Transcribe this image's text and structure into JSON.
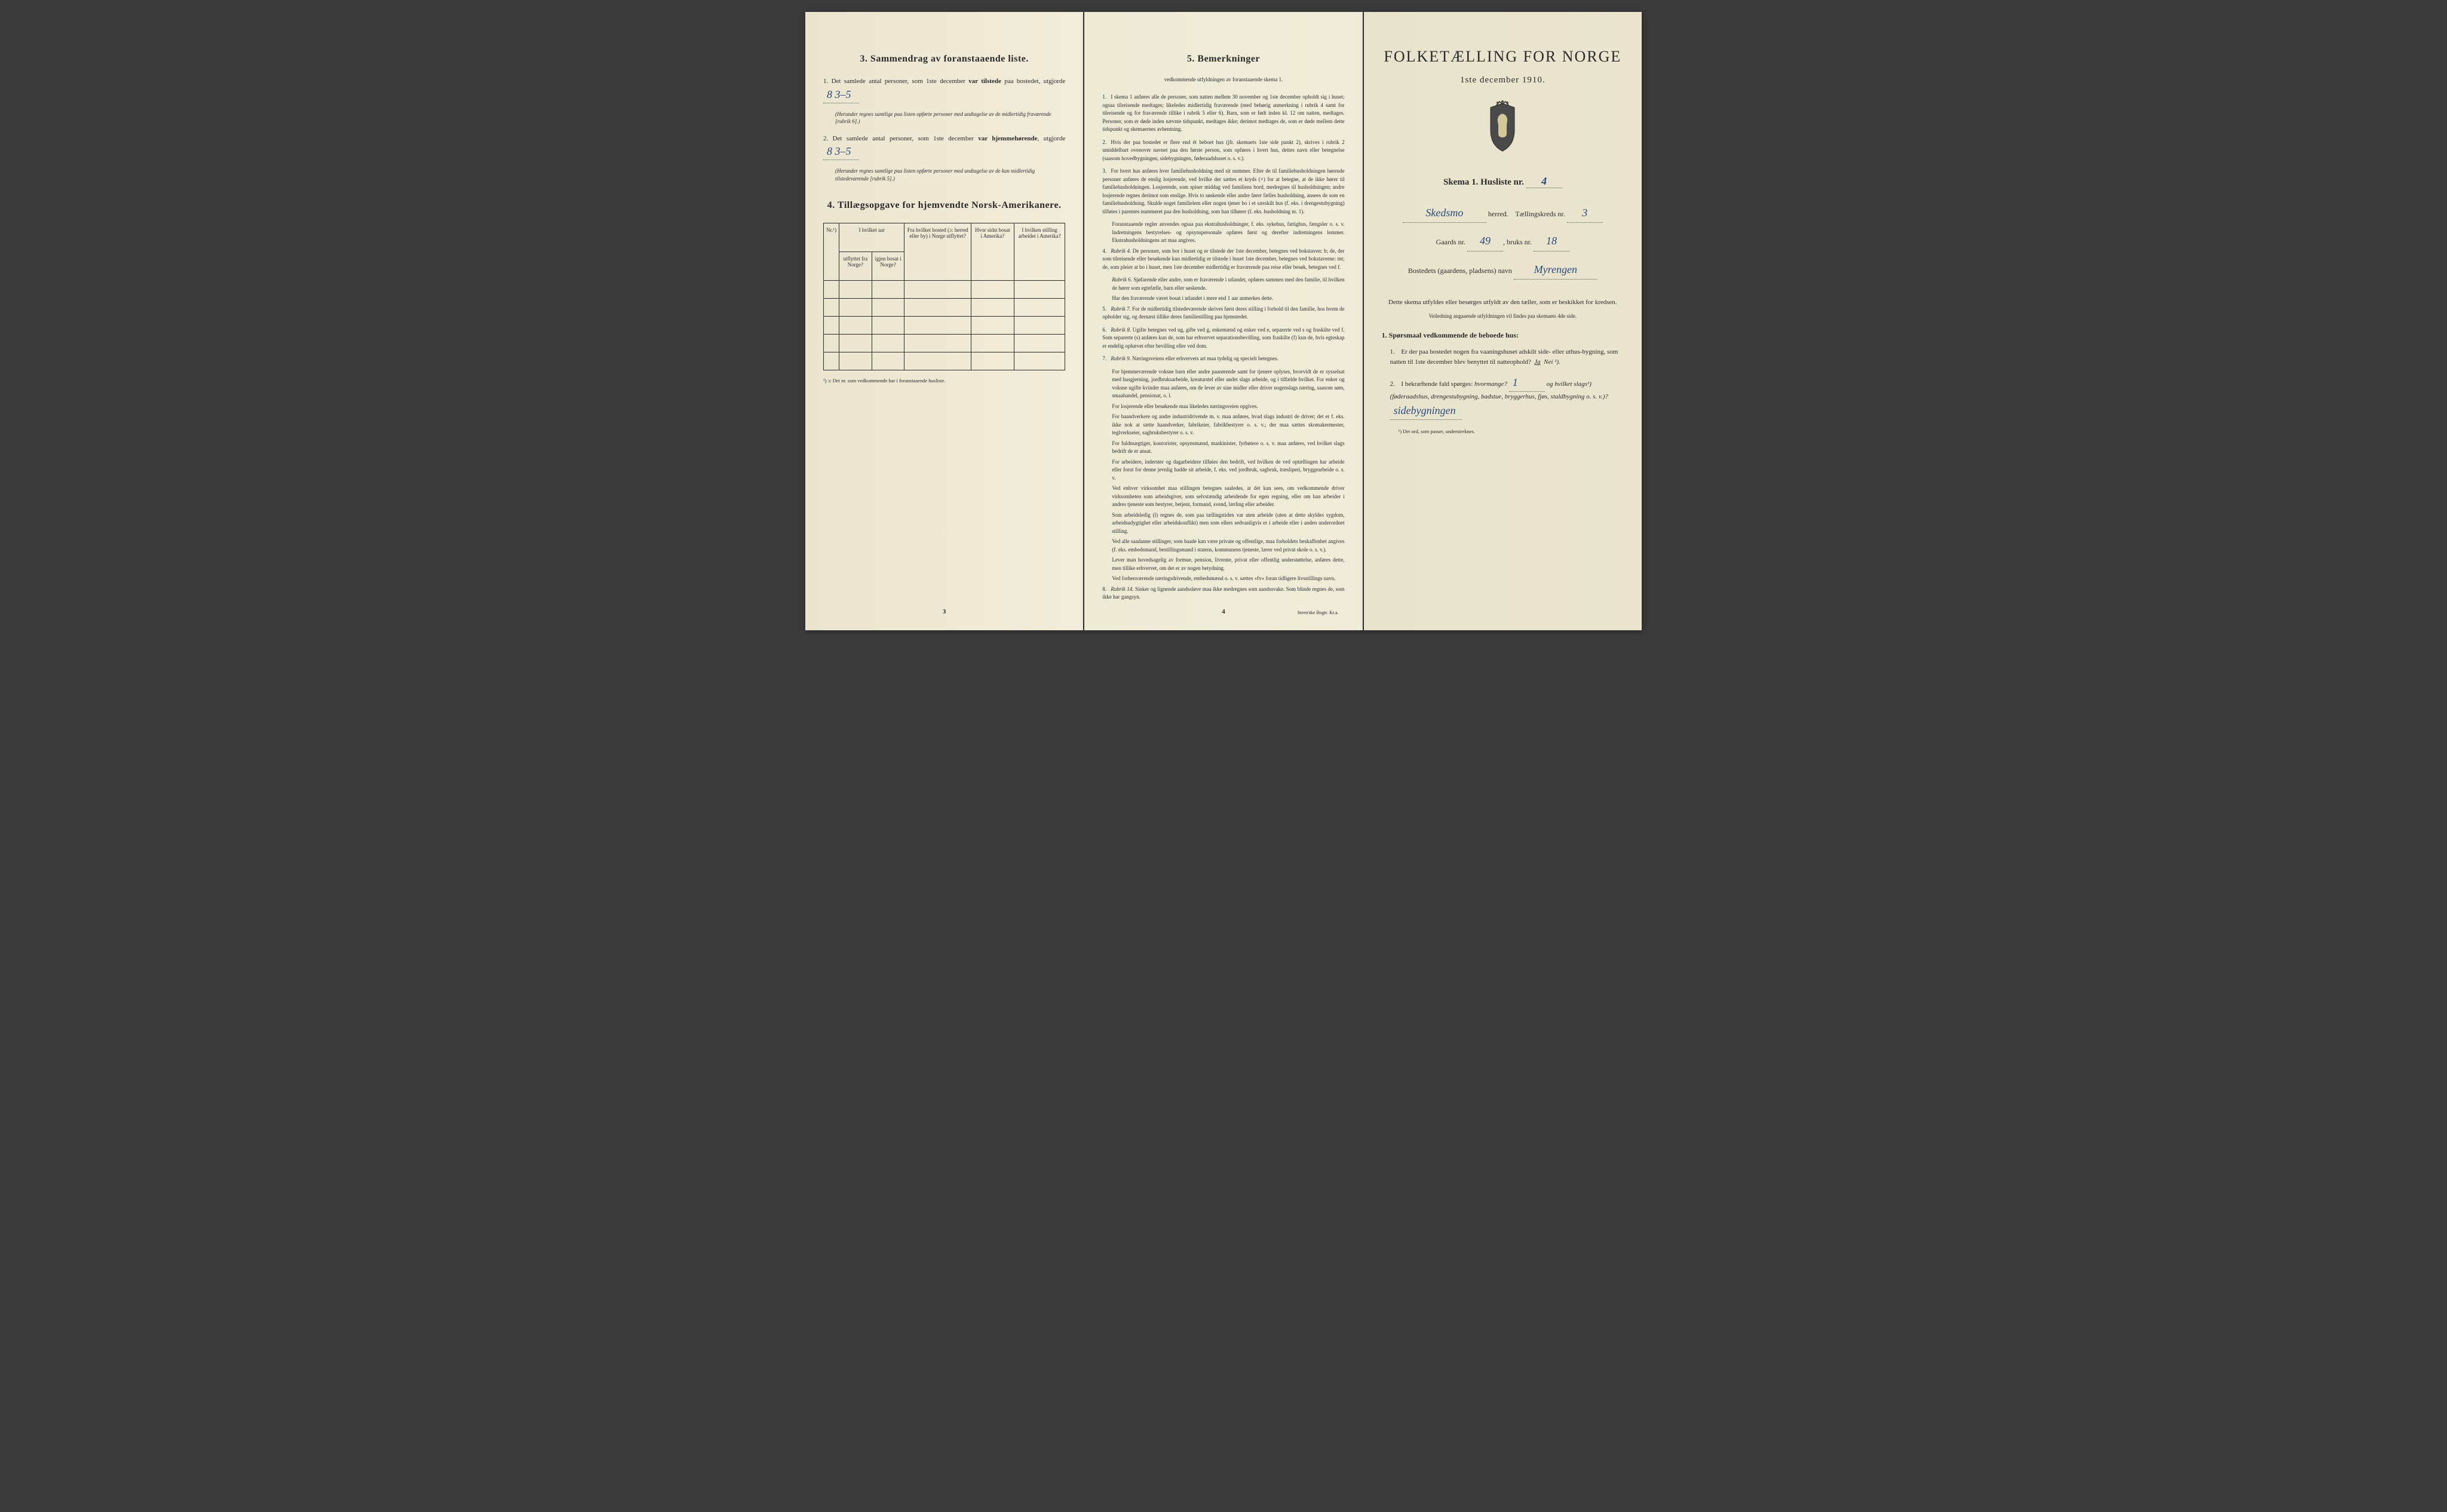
{
  "page_left": {
    "section3": {
      "title": "3.  Sammendrag av foranstaaende liste.",
      "item1_prefix": "1.  Det samlede antal personer, som 1ste december ",
      "item1_bold": "var tilstede",
      "item1_suffix": " paa bostedet, utgjorde",
      "item1_value": "8   3–5",
      "item1_note": "(Herunder regnes samtlige paa listen opførte personer med undtagelse av de midlertidig fraværende [rubrik 6].)",
      "item2_prefix": "2.  Det samlede antal personer, som 1ste december ",
      "item2_bold": "var hjemmehørende",
      "item2_suffix": ", utgjorde",
      "item2_value": "8   3–5",
      "item2_note": "(Herunder regnes samtlige paa listen opførte personer med undtagelse av de kun midlertidig tilstedeværende [rubrik 5].)"
    },
    "section4": {
      "title": "4.  Tillægsopgave for hjemvendte Norsk-Amerikanere.",
      "headers": {
        "col1": "Nr.¹)",
        "col2_main": "I hvilket aar",
        "col2a": "utflyttet fra Norge?",
        "col2b": "igjen bosat i Norge?",
        "col3": "Fra hvilket bosted (ɔ: herred eller by) i Norge utflyttet?",
        "col4": "Hvor sidst bosat i Amerika?",
        "col5": "I hvilken stilling arbeidet i Amerika?"
      },
      "footnote": "¹) ɔ: Det nr. som vedkommende har i foranstaaende husliste."
    },
    "page_num": "3"
  },
  "page_middle": {
    "title": "5.  Bemerkninger",
    "subtitle": "vedkommende utfyldningen av foranstaaende skema 1.",
    "items": [
      {
        "num": "1.",
        "text": "I skema 1 anføres alle de personer, som natten mellem 30 november og 1ste december opholdt sig i huset; ogsaa tilreisende medtages; likeledes midlertidig fraværende (med behørig anmerkning i rubrik 4 samt for tilreisende og for fraværende tillike i rubrik 5 eller 6). Barn, som er født inden kl. 12 om natten, medtages. Personer, som er døde inden nævnte tidspunkt, medtages ikke; derimot medtages de, som er døde mellem dette tidspunkt og skemaernes avhentning."
      },
      {
        "num": "2.",
        "text": "Hvis der paa bostedet er flere end ét beboet hus (jfr. skemaets 1ste side punkt 2), skrives i rubrik 2 umiddelbart ovenover navnet paa den første person, som opføres i hvert hus, dettes navn eller betegnelse (saasom hovedbygningen, sidebygningen, føderaadshuset o. s. v.)."
      },
      {
        "num": "3.",
        "text": "For hvert hus anføres hver familiehusholdning med sit nummer. Efter de til familiehusholdningen hørende personer anføres de enslig losjerende, ved hvilke der sættes et kryds (×) for at betegne, at de ikke hører til familiehusholdningen. Losjerende, som spiser middag ved familiens bord, medregnes til husholdningen; andre losjerende regnes derimot som enslige. Hvis to søskende eller andre fører fælles husholdning, ansees de som en familiehusholdning. Skulde noget familielem eller nogen tjener bo i et særskilt hus (f. eks. i drengestubygning) tilføies i parentes nummeret paa den husholdning, som han tilhører (f. eks. husholdning nr. 1)."
      },
      {
        "num": "",
        "text": "Foranstaaende regler anvendes ogsaa paa ekstrahusholdninger, f. eks. sykehus, fattighus, fængsler o. s. v. Indretningens bestyrelses- og opsynspersonale opføres først og derefter indretningens lemmer. Ekstrahusholdningens art maa angives.",
        "indent": true
      },
      {
        "num": "4.",
        "text": "Rubrik 4. De personer, som bor i huset og er tilstede der 1ste december, betegnes ved bokstaven: b; de, der som tilreisende eller besøkende kun midlertidig er tilstede i huset 1ste december, betegnes ved bokstaverne: mt; de, som pleier at bo i huset, men 1ste december midlertidig er fraværende paa reise eller besøk, betegnes ved f.",
        "italic_lead": "Rubrik 4."
      },
      {
        "num": "",
        "text": "Rubrik 6. Sjøfarende eller andre, som er fraværende i utlandet, opføres sammen med den familie, til hvilken de hører som egtefælle, barn eller søskende.",
        "indent": true,
        "italic_lead": "Rubrik 6."
      },
      {
        "num": "",
        "text": "Har den fraværende været bosat i utlandet i mere end 1 aar anmerkes dette.",
        "indent": true
      },
      {
        "num": "5.",
        "text": "Rubrik 7. For de midlertidig tilstedeværende skrives først deres stilling i forhold til den familie, hos hvem de opholder sig, og dernæst tillike deres familiestilling paa hjemstedet.",
        "italic_lead": "Rubrik 7."
      },
      {
        "num": "6.",
        "text": "Rubrik 8. Ugifte betegnes ved ug, gifte ved g, enkemænd og enker ved e, separerte ved s og fraskilte ved f. Som separerte (s) anføres kun de, som har erhvervet separationsbevilling, som fraskilte (f) kun de, hvis egteskap er endelig ophævet efter bevilling eller ved dom.",
        "italic_lead": "Rubrik 8."
      },
      {
        "num": "7.",
        "text": "Rubrik 9. Næringsveiens eller erhvervets art maa tydelig og specielt betegnes.",
        "italic_lead": "Rubrik 9."
      },
      {
        "num": "",
        "text": "For hjemmeværende voksne barn eller andre paarørende samt for tjenere oplyses, hvorvidt de er sysselsat med husgjerning, jordbruksarbeide, kreaturstel eller andet slags arbeide, og i tilfælde hvilket. For enker og voksne ugifte kvinder maa anføres, om de lever av sine midler eller driver nogenslags næring, saasom søm, smaahandel, pensionat, o. l.",
        "indent": true
      },
      {
        "num": "",
        "text": "For losjerende eller besøkende maa likeledes næringsveien opgives.",
        "indent": true
      },
      {
        "num": "",
        "text": "For haandverkere og andre industridrivende m. v. maa anføres, hvad slags industri de driver; det er f. eks. ikke nok at sætte haandverker, fabrikeier, fabrikbestyrer o. s. v.; der maa sættes skomakermester, teglverkseier, sagbruksbestyrer o. s. v.",
        "indent": true
      },
      {
        "num": "",
        "text": "For fuldmægtiger, kontorister, opsynsmænd, maskinister, fyrbøtere o. s. v. maa anføres, ved hvilket slags bedrift de er ansat.",
        "indent": true
      },
      {
        "num": "",
        "text": "For arbeidere, inderster og dagarbeidere tilføies den bedrift, ved hvilken de ved optællingen har arbeide eller forut for denne jevnlig hadde sit arbeide, f. eks. ved jordbruk, sagbruk, træsliperi, bryggearbeide o. s. v.",
        "indent": true
      },
      {
        "num": "",
        "text": "Ved enhver virksomhet maa stillingen betegnes saaledes, at det kan sees, om vedkommende driver virksomheten som arbeidsgiver, som selvstændig arbeidende for egen regning, eller om han arbeider i andres tjeneste som bestyrer, betjent, formand, svend, lærling eller arbeider.",
        "indent": true
      },
      {
        "num": "",
        "text": "Som arbeidsledig (l) regnes de, som paa tællingstiden var uten arbeide (uten at dette skyldes sygdom, arbeidsudygtighet eller arbeidskonflikt) men som ellers sedvanligvis er i arbeide eller i anden underordnet stilling.",
        "indent": true
      },
      {
        "num": "",
        "text": "Ved alle saadanne stillinger, som baade kan være private og offentlige, maa forholdets beskaffenhet angives (f. eks. embedsmand, bestillingsmand i statens, kommunens tjeneste, lærer ved privat skole o. s. v.).",
        "indent": true
      },
      {
        "num": "",
        "text": "Lever man hovedsagelig av formue, pension, livrente, privat eller offentlig understøttelse, anføres dette, men tillike erhvervet, om det er av nogen betydning.",
        "indent": true
      },
      {
        "num": "",
        "text": "Ved forhenværende næringsdrivende, embedsmænd o. s. v. sættes «fv» foran tidligere livsstillings navn.",
        "indent": true
      },
      {
        "num": "8.",
        "text": "Rubrik 14. Sinker og lignende aandssløve maa ikke medregnes som aandssvake. Som blinde regnes de, som ikke har gangsyn.",
        "italic_lead": "Rubrik 14."
      }
    ],
    "page_num": "4",
    "printer": "Steen'ske Bogtr. Kr.a."
  },
  "page_right": {
    "main_title": "FOLKETÆLLING FOR NORGE",
    "date": "1ste december 1910.",
    "skema_label": "Skema 1.  Husliste nr.",
    "husliste_nr": "4",
    "herred_value": "Skedsmo",
    "herred_label": "herred.",
    "kreds_label": "Tællingskreds nr.",
    "kreds_value": "3",
    "gaards_label": "Gaards nr.",
    "gaards_value": "49",
    "bruks_label": "bruks nr.",
    "bruks_value": "18",
    "bosted_label": "Bostedets (gaardens, pladsens) navn",
    "bosted_value": "Myrengen",
    "instruction": "Dette skema utfyldes eller besørges utfyldt av den tæller, som er beskikket for kredsen.",
    "small_instruction": "Veiledning angaaende utfyldningen vil findes paa skemaets 4de side.",
    "q_head": "1. Spørsmaal vedkommende de beboede hus:",
    "q1_num": "1.",
    "q1_text": "Er der paa bostedet nogen fra vaaningshuset adskilt side- eller uthus-bygning, som natten til 1ste december blev benyttet til natteophold?",
    "q1_ja": "Ja",
    "q1_nei": "Nei ¹).",
    "q2_num": "2.",
    "q2_text_a": "I bekræftende fald spørges: ",
    "q2_text_b": "hvormange?",
    "q2_value": "1",
    "q2_text_c": "og hvilket slags¹) (føderaadshus, drengestubygning, badstue, bryggerhus, fjøs, staldbygning o. s. v.)?",
    "q2_answer": "sidebygningen",
    "final_note": "¹) Det ord, som passer, understreknes."
  }
}
